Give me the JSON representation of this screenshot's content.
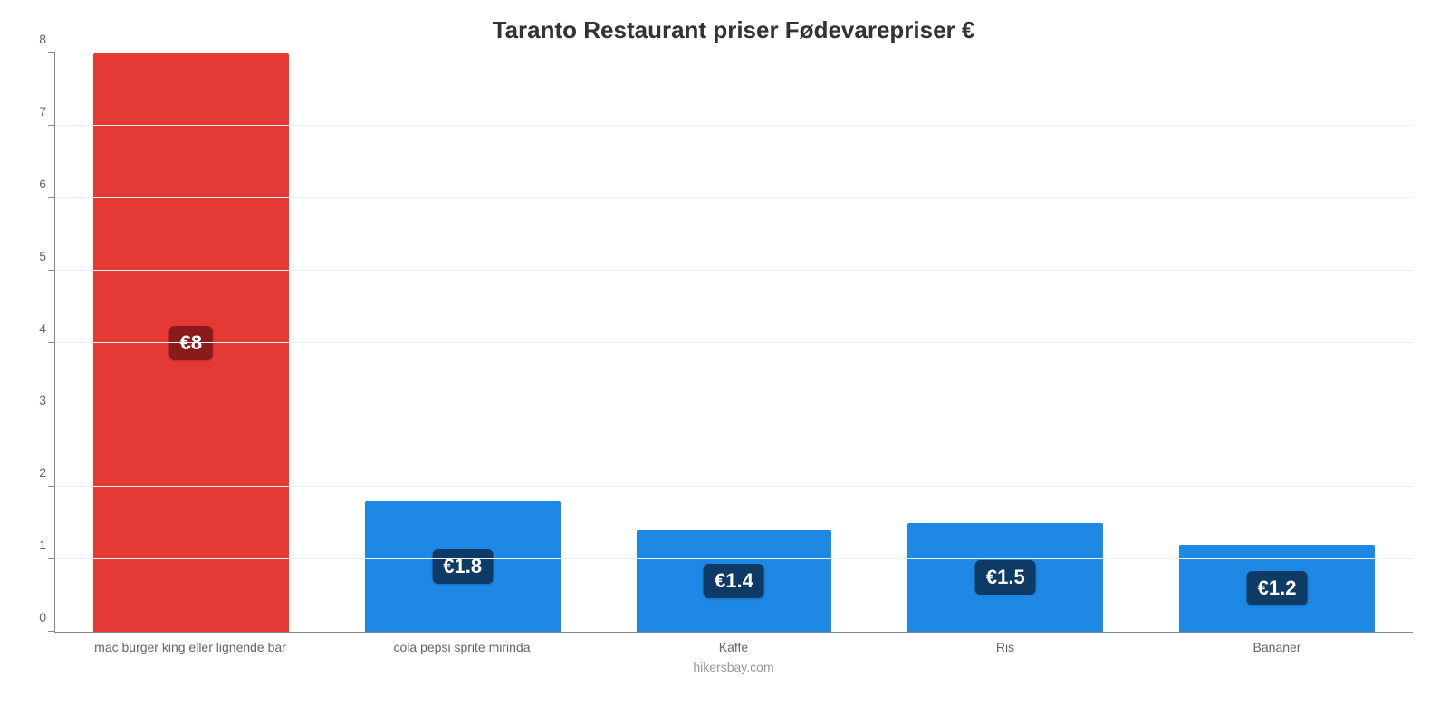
{
  "chart": {
    "type": "bar",
    "title": "Taranto Restaurant priser Fødevarepriser €",
    "title_fontsize": 26,
    "credit": "hikersbay.com",
    "credit_fontsize": 14,
    "background_color": "#ffffff",
    "grid_color": "#f0f0f0",
    "axis_color": "#888888",
    "tick_label_color": "#666666",
    "tick_label_fontsize": 14,
    "x_label_fontsize": 14,
    "ylim": [
      0,
      8
    ],
    "ytick_step": 1,
    "bar_width_pct": 72,
    "value_badge_fontsize": 22,
    "categories": [
      "mac burger king eller lignende bar",
      "cola pepsi sprite mirinda",
      "Kaffe",
      "Ris",
      "Bananer"
    ],
    "values": [
      8,
      1.8,
      1.4,
      1.5,
      1.2
    ],
    "value_labels": [
      "€8",
      "€1.8",
      "€1.4",
      "€1.5",
      "€1.2"
    ],
    "bar_colors": [
      "#e53935",
      "#1e88e5",
      "#1e88e5",
      "#1e88e5",
      "#1e88e5"
    ],
    "badge_colors": [
      "#8b1a1a",
      "#0d3b66",
      "#0d3b66",
      "#0d3b66",
      "#0d3b66"
    ]
  }
}
